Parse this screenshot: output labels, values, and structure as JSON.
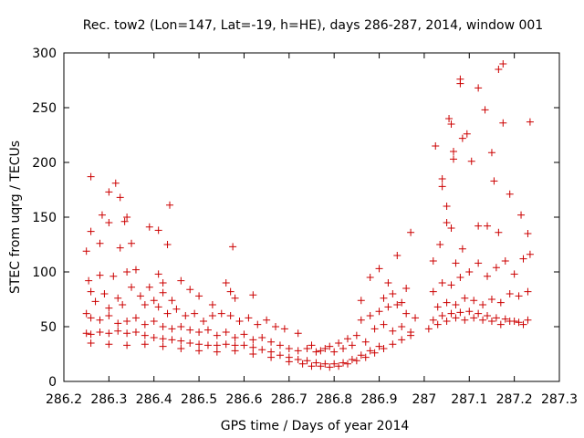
{
  "chart_data": {
    "type": "scatter",
    "title": "Rec. tow2 (Lon=147, Lat=-19, h=HE), days 286-287, 2014, window 001",
    "xlabel": "GPS time / Days of year 2014",
    "ylabel": "STEC from uqrg / TECUs",
    "xlim": [
      286.2,
      287.3
    ],
    "ylim": [
      0,
      300
    ],
    "xticks": [
      286.2,
      286.3,
      286.4,
      286.5,
      286.6,
      286.7,
      286.8,
      286.9,
      287,
      287.1,
      287.2,
      287.3
    ],
    "xtick_labels": [
      "286.2",
      "286.3",
      "286.4",
      "286.5",
      "286.6",
      "286.7",
      "286.8",
      "286.9",
      "287",
      "287.1",
      "287.2",
      "287.3"
    ],
    "yticks": [
      0,
      50,
      100,
      150,
      200,
      250,
      300
    ],
    "ytick_labels": [
      "0",
      "50",
      "100",
      "150",
      "200",
      "250",
      "300"
    ],
    "grid": false,
    "marker": "+",
    "color": "#cc0000",
    "points": [
      [
        286.26,
        187
      ],
      [
        286.285,
        152
      ],
      [
        286.315,
        181
      ],
      [
        286.3,
        173
      ],
      [
        286.325,
        168
      ],
      [
        286.34,
        150
      ],
      [
        286.335,
        146
      ],
      [
        286.3,
        145
      ],
      [
        286.26,
        137
      ],
      [
        286.28,
        126
      ],
      [
        286.35,
        126
      ],
      [
        286.325,
        122
      ],
      [
        286.25,
        119
      ],
      [
        286.39,
        141
      ],
      [
        286.41,
        138
      ],
      [
        286.435,
        161
      ],
      [
        286.43,
        125
      ],
      [
        286.575,
        123
      ],
      [
        286.41,
        98
      ],
      [
        286.42,
        90
      ],
      [
        286.46,
        92
      ],
      [
        286.48,
        84
      ],
      [
        286.42,
        81
      ],
      [
        286.44,
        74
      ],
      [
        286.5,
        78
      ],
      [
        286.53,
        70
      ],
      [
        286.56,
        90
      ],
      [
        286.57,
        82
      ],
      [
        286.62,
        79
      ],
      [
        286.58,
        76
      ],
      [
        286.255,
        92
      ],
      [
        286.26,
        82
      ],
      [
        286.27,
        73
      ],
      [
        286.28,
        97
      ],
      [
        286.29,
        80
      ],
      [
        286.3,
        67
      ],
      [
        286.31,
        96
      ],
      [
        286.32,
        76
      ],
      [
        286.33,
        70
      ],
      [
        286.34,
        100
      ],
      [
        286.35,
        86
      ],
      [
        286.36,
        102
      ],
      [
        286.37,
        78
      ],
      [
        286.38,
        70
      ],
      [
        286.39,
        86
      ],
      [
        286.4,
        74
      ],
      [
        286.41,
        68
      ],
      [
        286.43,
        62
      ],
      [
        286.45,
        66
      ],
      [
        286.47,
        60
      ],
      [
        286.49,
        62
      ],
      [
        286.51,
        55
      ],
      [
        286.53,
        60
      ],
      [
        286.55,
        62
      ],
      [
        286.57,
        60
      ],
      [
        286.59,
        55
      ],
      [
        286.61,
        58
      ],
      [
        286.63,
        52
      ],
      [
        286.65,
        56
      ],
      [
        286.67,
        50
      ],
      [
        286.25,
        62
      ],
      [
        286.26,
        58
      ],
      [
        286.28,
        56
      ],
      [
        286.3,
        60
      ],
      [
        286.32,
        53
      ],
      [
        286.34,
        55
      ],
      [
        286.36,
        58
      ],
      [
        286.38,
        52
      ],
      [
        286.4,
        55
      ],
      [
        286.42,
        50
      ],
      [
        286.44,
        48
      ],
      [
        286.46,
        50
      ],
      [
        286.48,
        47
      ],
      [
        286.5,
        45
      ],
      [
        286.52,
        47
      ],
      [
        286.54,
        42
      ],
      [
        286.56,
        45
      ],
      [
        286.58,
        40
      ],
      [
        286.6,
        43
      ],
      [
        286.62,
        38
      ],
      [
        286.64,
        40
      ],
      [
        286.66,
        36
      ],
      [
        286.68,
        33
      ],
      [
        286.7,
        30
      ],
      [
        286.72,
        28
      ],
      [
        286.74,
        30
      ],
      [
        286.76,
        27
      ],
      [
        286.78,
        30
      ],
      [
        286.8,
        27
      ],
      [
        286.82,
        30
      ],
      [
        286.84,
        33
      ],
      [
        286.25,
        44
      ],
      [
        286.26,
        43
      ],
      [
        286.28,
        45
      ],
      [
        286.3,
        44
      ],
      [
        286.32,
        46
      ],
      [
        286.34,
        44
      ],
      [
        286.36,
        45
      ],
      [
        286.38,
        42
      ],
      [
        286.4,
        40
      ],
      [
        286.42,
        39
      ],
      [
        286.44,
        38
      ],
      [
        286.46,
        37
      ],
      [
        286.48,
        35
      ],
      [
        286.5,
        34
      ],
      [
        286.52,
        33
      ],
      [
        286.54,
        33
      ],
      [
        286.56,
        34
      ],
      [
        286.58,
        33
      ],
      [
        286.6,
        33
      ],
      [
        286.62,
        31
      ],
      [
        286.64,
        29
      ],
      [
        286.66,
        27
      ],
      [
        286.68,
        24
      ],
      [
        286.7,
        22
      ],
      [
        286.72,
        20
      ],
      [
        286.74,
        19
      ],
      [
        286.76,
        17
      ],
      [
        286.78,
        16
      ],
      [
        286.8,
        16
      ],
      [
        286.82,
        17
      ],
      [
        286.84,
        20
      ],
      [
        286.86,
        24
      ],
      [
        286.88,
        28
      ],
      [
        286.9,
        32
      ],
      [
        286.26,
        35
      ],
      [
        286.3,
        34
      ],
      [
        286.34,
        33
      ],
      [
        286.38,
        34
      ],
      [
        286.42,
        32
      ],
      [
        286.46,
        30
      ],
      [
        286.5,
        28
      ],
      [
        286.54,
        27
      ],
      [
        286.58,
        28
      ],
      [
        286.62,
        25
      ],
      [
        286.66,
        22
      ],
      [
        286.7,
        18
      ],
      [
        286.73,
        16
      ],
      [
        286.75,
        14
      ],
      [
        286.77,
        14
      ],
      [
        286.79,
        13
      ],
      [
        286.81,
        14
      ],
      [
        286.83,
        16
      ],
      [
        286.85,
        19
      ],
      [
        286.87,
        22
      ],
      [
        286.89,
        26
      ],
      [
        286.91,
        30
      ],
      [
        286.93,
        34
      ],
      [
        286.95,
        38
      ],
      [
        286.97,
        42
      ],
      [
        286.69,
        48
      ],
      [
        286.72,
        44
      ],
      [
        286.75,
        33
      ],
      [
        286.77,
        28
      ],
      [
        286.79,
        32
      ],
      [
        286.81,
        35
      ],
      [
        286.83,
        39
      ],
      [
        286.85,
        42
      ],
      [
        286.87,
        36
      ],
      [
        286.89,
        48
      ],
      [
        286.91,
        52
      ],
      [
        286.93,
        46
      ],
      [
        286.95,
        50
      ],
      [
        286.97,
        45
      ],
      [
        286.86,
        56
      ],
      [
        286.88,
        60
      ],
      [
        286.9,
        64
      ],
      [
        286.92,
        68
      ],
      [
        286.94,
        70
      ],
      [
        286.96,
        62
      ],
      [
        286.98,
        58
      ],
      [
        286.88,
        95
      ],
      [
        286.9,
        103
      ],
      [
        286.92,
        90
      ],
      [
        286.94,
        115
      ],
      [
        286.96,
        85
      ],
      [
        286.97,
        136
      ],
      [
        286.93,
        80
      ],
      [
        286.86,
        74
      ],
      [
        286.91,
        76
      ],
      [
        286.95,
        72
      ],
      [
        287.01,
        48
      ],
      [
        287.03,
        52
      ],
      [
        287.05,
        55
      ],
      [
        287.07,
        58
      ],
      [
        287.09,
        56
      ],
      [
        287.11,
        58
      ],
      [
        287.13,
        56
      ],
      [
        287.15,
        55
      ],
      [
        287.17,
        52
      ],
      [
        287.19,
        55
      ],
      [
        287.21,
        54
      ],
      [
        287.23,
        56
      ],
      [
        287.02,
        56
      ],
      [
        287.04,
        60
      ],
      [
        287.06,
        62
      ],
      [
        287.08,
        63
      ],
      [
        287.1,
        64
      ],
      [
        287.12,
        62
      ],
      [
        287.14,
        60
      ],
      [
        287.16,
        58
      ],
      [
        287.18,
        57
      ],
      [
        287.2,
        55
      ],
      [
        287.22,
        52
      ],
      [
        287.03,
        68
      ],
      [
        287.05,
        72
      ],
      [
        287.07,
        70
      ],
      [
        287.09,
        76
      ],
      [
        287.11,
        74
      ],
      [
        287.13,
        70
      ],
      [
        287.15,
        75
      ],
      [
        287.17,
        72
      ],
      [
        287.19,
        80
      ],
      [
        287.21,
        78
      ],
      [
        287.23,
        82
      ],
      [
        287.02,
        82
      ],
      [
        287.04,
        90
      ],
      [
        287.06,
        88
      ],
      [
        287.08,
        95
      ],
      [
        287.1,
        100
      ],
      [
        287.12,
        108
      ],
      [
        287.14,
        96
      ],
      [
        287.16,
        104
      ],
      [
        287.18,
        110
      ],
      [
        287.2,
        98
      ],
      [
        287.22,
        112
      ],
      [
        287.235,
        116
      ],
      [
        287.025,
        215
      ],
      [
        287.04,
        185
      ],
      [
        287.04,
        178
      ],
      [
        287.05,
        160
      ],
      [
        287.055,
        240
      ],
      [
        287.06,
        235
      ],
      [
        287.065,
        210
      ],
      [
        287.065,
        203
      ],
      [
        287.08,
        276
      ],
      [
        287.08,
        272
      ],
      [
        287.085,
        222
      ],
      [
        287.095,
        226
      ],
      [
        287.105,
        201
      ],
      [
        287.12,
        268
      ],
      [
        287.135,
        248
      ],
      [
        287.15,
        209
      ],
      [
        287.155,
        183
      ],
      [
        287.165,
        285
      ],
      [
        287.175,
        290
      ],
      [
        287.175,
        236
      ],
      [
        287.19,
        171
      ],
      [
        287.215,
        152
      ],
      [
        287.235,
        237
      ],
      [
        287.23,
        135
      ],
      [
        287.05,
        145
      ],
      [
        287.06,
        140
      ],
      [
        287.12,
        142
      ],
      [
        287.14,
        142
      ],
      [
        287.165,
        136
      ],
      [
        287.085,
        121
      ],
      [
        287.035,
        125
      ],
      [
        287.02,
        110
      ],
      [
        287.07,
        108
      ]
    ]
  }
}
